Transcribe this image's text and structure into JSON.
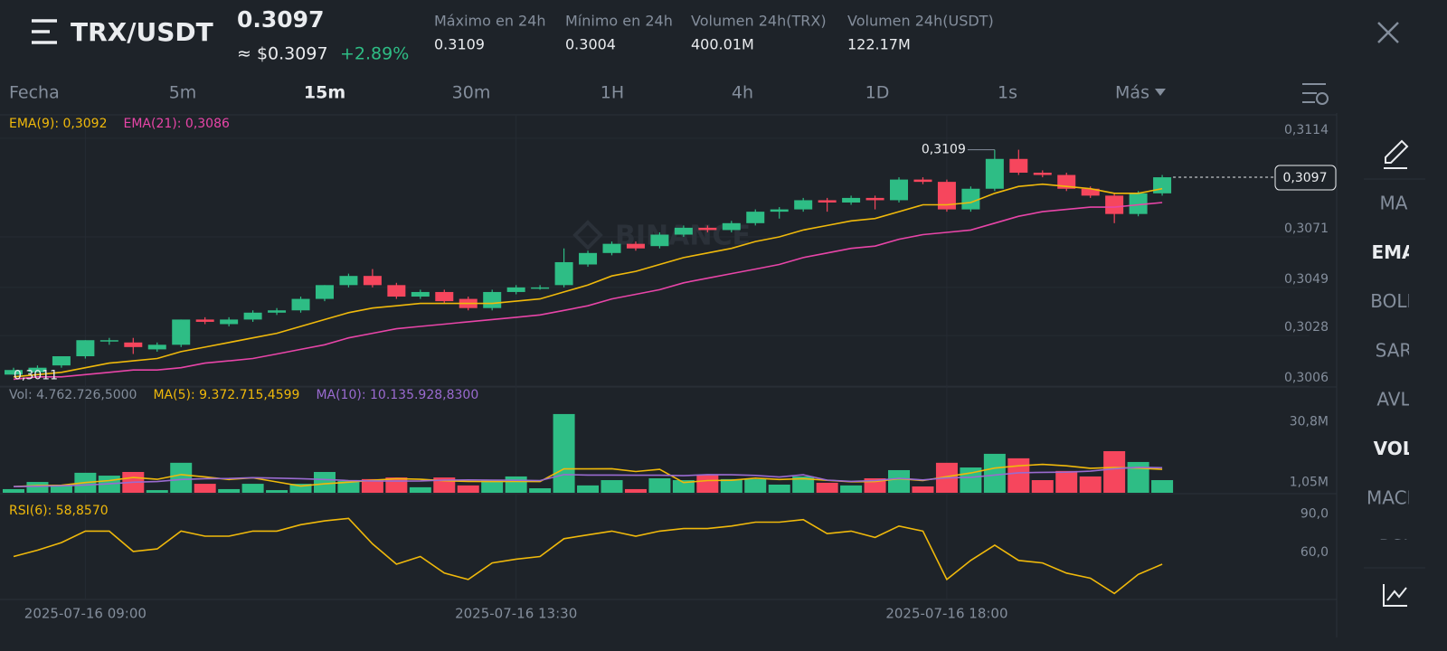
{
  "header": {
    "pair": "TRX/USDT",
    "price": "0.3097",
    "usd_price": "≈ $0.3097",
    "change": "+2.89%",
    "stats": [
      {
        "label": "Máximo en 24h",
        "value": "0.3109"
      },
      {
        "label": "Mínimo en 24h",
        "value": "0.3004"
      },
      {
        "label": "Volumen 24h(TRX)",
        "value": "400.01M"
      },
      {
        "label": "Volumen 24h(USDT)",
        "value": "122.17M"
      }
    ]
  },
  "toolbar": [
    {
      "label": "Fecha",
      "active": false
    },
    {
      "label": "5m",
      "active": false
    },
    {
      "label": "15m",
      "active": true
    },
    {
      "label": "30m",
      "active": false
    },
    {
      "label": "1H",
      "active": false
    },
    {
      "label": "4h",
      "active": false
    },
    {
      "label": "1D",
      "active": false
    },
    {
      "label": "1s",
      "active": false
    },
    {
      "label": "Más",
      "active": false
    }
  ],
  "sidebar": [
    {
      "label": "MA",
      "active": false
    },
    {
      "label": "EMA",
      "active": true
    },
    {
      "label": "BOLL",
      "active": false
    },
    {
      "label": "SAR",
      "active": false
    },
    {
      "label": "AVL",
      "active": false
    },
    {
      "label": "VOL",
      "active": true
    },
    {
      "label": "MACD",
      "active": false
    },
    {
      "label": "RSI",
      "active": false
    }
  ],
  "chart_data": [
    {
      "type": "candlestick",
      "watermark": "BINANCE",
      "up_color": "#2ebd85",
      "down_color": "#f6465d",
      "categories": [
        null,
        null,
        null,
        "2025-07-16 09:00",
        null,
        null,
        null,
        null,
        null,
        null,
        null,
        null,
        null,
        null,
        null,
        null,
        null,
        null,
        null,
        null,
        null,
        "2025-07-16 13:30",
        null,
        null,
        null,
        null,
        null,
        null,
        null,
        null,
        null,
        null,
        null,
        null,
        null,
        null,
        null,
        null,
        null,
        "2025-07-16 18:00",
        null,
        null,
        null,
        null,
        null,
        null,
        null,
        null,
        null
      ],
      "open": [
        0.3011,
        0.3012,
        0.3015,
        0.3019,
        0.3026,
        0.3025,
        0.3022,
        0.3024,
        0.3035,
        0.3033,
        0.3035,
        0.3038,
        0.3039,
        0.3044,
        0.305,
        0.3054,
        0.305,
        0.3045,
        0.3047,
        0.3044,
        0.304,
        0.3047,
        0.3049,
        0.305,
        0.3059,
        0.3064,
        0.3068,
        0.3067,
        0.3072,
        0.3075,
        0.3074,
        0.3077,
        0.3082,
        0.3083,
        0.3087,
        0.3086,
        0.3088,
        0.3087,
        0.3096,
        0.3095,
        0.3083,
        0.3092,
        0.3105,
        0.3099,
        0.3098,
        0.3092,
        0.3089,
        0.3081,
        0.309
      ],
      "high": [
        0.3014,
        0.3015,
        0.3019,
        0.3026,
        0.3027,
        0.3027,
        0.3025,
        0.3035,
        0.3036,
        0.3036,
        0.3039,
        0.304,
        0.3045,
        0.305,
        0.3055,
        0.3057,
        0.3051,
        0.3048,
        0.3048,
        0.3045,
        0.3048,
        0.305,
        0.305,
        0.3066,
        0.3065,
        0.3069,
        0.3069,
        0.3073,
        0.3076,
        0.3076,
        0.3078,
        0.3083,
        0.3084,
        0.3088,
        0.3088,
        0.3089,
        0.3089,
        0.3097,
        0.3097,
        0.3096,
        0.3093,
        0.3109,
        0.3109,
        0.31,
        0.3099,
        0.3093,
        0.309,
        0.3091,
        0.3098
      ],
      "low": [
        0.3011,
        0.3012,
        0.3014,
        0.3018,
        0.3024,
        0.302,
        0.3021,
        0.3023,
        0.3033,
        0.3032,
        0.3034,
        0.3037,
        0.3038,
        0.3043,
        0.3049,
        0.3049,
        0.3044,
        0.3044,
        0.3042,
        0.3039,
        0.3039,
        0.3046,
        0.3048,
        0.3049,
        0.3058,
        0.3063,
        0.3065,
        0.3066,
        0.3071,
        0.3073,
        0.3073,
        0.3076,
        0.3079,
        0.3082,
        0.3082,
        0.3085,
        0.3083,
        0.3086,
        0.3094,
        0.3082,
        0.3082,
        0.3091,
        0.3098,
        0.3097,
        0.3091,
        0.3088,
        0.3077,
        0.308,
        0.3089
      ],
      "close": [
        0.3013,
        0.3014,
        0.3019,
        0.3026,
        0.3026,
        0.3023,
        0.3024,
        0.3035,
        0.3034,
        0.3035,
        0.3038,
        0.3039,
        0.3044,
        0.305,
        0.3054,
        0.305,
        0.3045,
        0.3047,
        0.3043,
        0.304,
        0.3047,
        0.3049,
        0.3049,
        0.306,
        0.3064,
        0.3068,
        0.3066,
        0.3072,
        0.3075,
        0.3074,
        0.3077,
        0.3082,
        0.3083,
        0.3087,
        0.3086,
        0.3088,
        0.3087,
        0.3096,
        0.3095,
        0.3083,
        0.3092,
        0.3105,
        0.3099,
        0.3098,
        0.3092,
        0.3089,
        0.3081,
        0.309,
        0.3097
      ],
      "series": [
        {
          "name": "EMA(9): 0,3092",
          "color": "#f0b90b",
          "values": [
            0.301,
            0.3011,
            0.3012,
            0.3014,
            0.3016,
            0.3017,
            0.3018,
            0.3021,
            0.3023,
            0.3025,
            0.3027,
            0.3029,
            0.3032,
            0.3035,
            0.3038,
            0.304,
            0.3041,
            0.3042,
            0.3042,
            0.3042,
            0.3042,
            0.3043,
            0.3044,
            0.3047,
            0.305,
            0.3054,
            0.3056,
            0.3059,
            0.3062,
            0.3064,
            0.3066,
            0.3069,
            0.3071,
            0.3074,
            0.3076,
            0.3078,
            0.3079,
            0.3082,
            0.3085,
            0.3085,
            0.3086,
            0.309,
            0.3093,
            0.3094,
            0.3093,
            0.3092,
            0.309,
            0.309,
            0.3092
          ]
        },
        {
          "name": "EMA(21): 0,3086",
          "color": "#e845a8",
          "values": [
            0.3009,
            0.301,
            0.301,
            0.3011,
            0.3012,
            0.3013,
            0.3013,
            0.3014,
            0.3016,
            0.3017,
            0.3018,
            0.302,
            0.3022,
            0.3024,
            0.3027,
            0.3029,
            0.3031,
            0.3032,
            0.3033,
            0.3034,
            0.3035,
            0.3036,
            0.3037,
            0.3039,
            0.3041,
            0.3044,
            0.3046,
            0.3048,
            0.3051,
            0.3053,
            0.3055,
            0.3057,
            0.3059,
            0.3062,
            0.3064,
            0.3066,
            0.3067,
            0.307,
            0.3072,
            0.3073,
            0.3074,
            0.3077,
            0.308,
            0.3082,
            0.3083,
            0.3084,
            0.3084,
            0.3085,
            0.3086
          ]
        }
      ],
      "annotations": {
        "high": "0,3109",
        "low": "0,3011",
        "last": "0,3097"
      },
      "ylim": [
        0.3006,
        0.3125
      ],
      "yticks": [
        {
          "value": 0.3114,
          "label": "0,3114"
        },
        {
          "value": 0.3071,
          "label": "0,3071"
        },
        {
          "value": 0.3049,
          "label": "0,3049"
        },
        {
          "value": 0.3028,
          "label": "0,3028"
        },
        {
          "value": 0.3006,
          "label": "0,3006"
        }
      ],
      "grid": true
    },
    {
      "type": "bar",
      "legend_label": "Vol: 4.762.726,5000",
      "values": [
        1800000,
        5300000,
        3600000,
        9800000,
        8400000,
        10200000,
        1300000,
        14700000,
        4400000,
        1800000,
        4400000,
        1300000,
        4400000,
        10200000,
        5800000,
        6700000,
        7500000,
        2700000,
        7500000,
        3600000,
        6200000,
        8000000,
        2200000,
        38600000,
        3600000,
        6200000,
        1800000,
        7100000,
        6200000,
        8900000,
        6700000,
        6700000,
        4000000,
        8000000,
        4900000,
        3600000,
        7100000,
        11100000,
        3100000,
        14700000,
        12400000,
        19100000,
        16900000,
        6200000,
        10700000,
        8000000,
        20400000,
        15100000,
        6200000
      ],
      "series": [
        {
          "name": "MA(5): 9.372.715,4599",
          "color": "#f0b90b",
          "values": [
            3000000,
            3500000,
            3700000,
            5000000,
            6000000,
            7500000,
            6600000,
            8900000,
            7800000,
            6500000,
            7300000,
            5300000,
            3300000,
            4400000,
            5200000,
            6100000,
            6900000,
            6600000,
            5900000,
            5600000,
            5500000,
            5600000,
            5500000,
            11700000,
            11700000,
            11800000,
            10400000,
            11500000,
            5000000,
            6000000,
            6100000,
            7200000,
            6500000,
            6900000,
            6100000,
            5400000,
            5500000,
            6900000,
            6000000,
            7900000,
            9700000,
            12100000,
            13200000,
            13900000,
            13200000,
            12000000,
            12400000,
            12100000,
            11500000
          ]
        },
        {
          "name": "MA(10): 10.135.928,8300",
          "color": "#9a6bd0",
          "values": [
            3000000,
            3200000,
            3400000,
            3800000,
            4400000,
            5200000,
            5500000,
            6500000,
            6900000,
            7000000,
            7400000,
            7200000,
            6900000,
            6500000,
            6000000,
            5800000,
            5700000,
            5800000,
            6200000,
            6300000,
            6200000,
            6100000,
            6000000,
            8900000,
            8700000,
            8700000,
            8600000,
            8600000,
            8400000,
            8900000,
            8800000,
            8500000,
            7700000,
            8800000,
            6200000,
            5600000,
            6000000,
            7100000,
            6300000,
            7300000,
            7600000,
            8700000,
            9800000,
            10000000,
            10100000,
            10600000,
            11800000,
            12500000,
            12300000
          ]
        }
      ],
      "ylim": [
        0,
        43000000
      ],
      "yticks": [
        {
          "value": 30800000,
          "label": "30,8M"
        },
        {
          "value": 1050000,
          "label": "1,05M"
        }
      ],
      "grid": false
    },
    {
      "type": "line",
      "series": [
        {
          "name": "RSI(6): 58,8570",
          "color": "#f0b90b",
          "values": [
            63,
            68,
            74,
            83,
            83,
            67,
            69,
            83,
            79,
            79,
            83,
            83,
            88,
            91,
            93,
            73,
            57,
            63,
            50,
            45,
            58,
            61,
            63,
            77,
            80,
            83,
            79,
            83,
            85,
            85,
            87,
            90,
            90,
            92,
            81,
            83,
            78,
            87,
            83,
            45,
            60,
            72,
            60,
            58,
            50,
            46,
            34,
            49,
            57
          ]
        }
      ],
      "ylim": [
        30,
        106
      ],
      "yticks": [
        {
          "value": 90,
          "label": "90,0"
        },
        {
          "value": 60,
          "label": "60,0"
        }
      ],
      "grid": false
    }
  ]
}
